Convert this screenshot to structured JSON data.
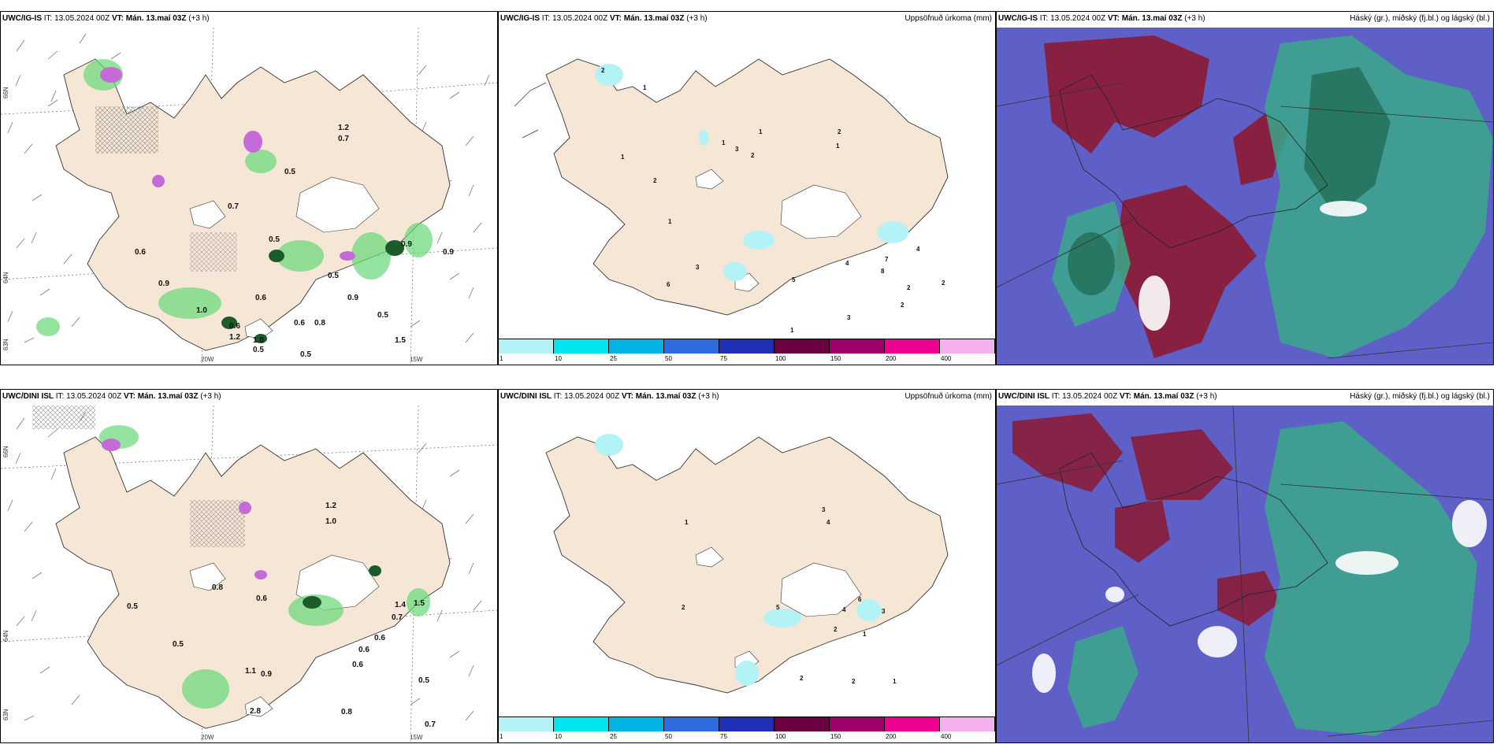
{
  "rows": [
    {
      "model": "UWC/IG-IS",
      "it_label": "IT:",
      "it_value": "13.05.2024 00Z",
      "vt_label": "VT:",
      "vt_value": "Mán. 13.maí 03Z",
      "lead": "(+3 h)",
      "precip_title": "Uppsöfnuð úrkoma (mm)",
      "cloud_title": "Háský (gr.), miðský (fj.bl.) og lágský (bl.)",
      "lat_labels": [
        "66N",
        "64N",
        "63N"
      ],
      "lon_labels": [
        "20W",
        "15W"
      ],
      "left_values": [
        "1.2",
        "0.7",
        "0.5",
        "0.7",
        "0.5",
        "0.6",
        "0.9",
        "0.9",
        "0.5",
        "0.9",
        "0.9",
        "1.5",
        "0.5",
        "0.6",
        "0.8",
        "1.0",
        "0.6",
        "1.2",
        "0.5",
        "0.6",
        "1.0",
        "0.5"
      ],
      "mid_values": [
        "2",
        "1",
        "3",
        "2",
        "1",
        "1",
        "2",
        "2",
        "1",
        "1",
        "1",
        "3",
        "6",
        "5",
        "4",
        "7",
        "8",
        "4",
        "2",
        "2",
        "3",
        "2",
        "1"
      ]
    },
    {
      "model": "UWC/DINI ISL",
      "it_label": "IT:",
      "it_value": "13.05.2024 00Z",
      "vt_label": "VT:",
      "vt_value": "Mán. 13.maí 03Z",
      "lead": "(+3 h)",
      "precip_title": "Uppsöfnuð úrkoma (mm)",
      "cloud_title": "Háský (gr.), miðský (fj.bl.) og lágský (bl.)",
      "lat_labels": [
        "66N",
        "64N",
        "63N"
      ],
      "lon_labels": [
        "20W",
        "15W"
      ],
      "left_values": [
        "1.2",
        "1.0",
        "0.8",
        "0.6",
        "0.5",
        "0.5",
        "1.4",
        "0.7",
        "1.5",
        "0.6",
        "0.6",
        "0.6",
        "0.5",
        "0.8",
        "0.7",
        "1.1",
        "0.9",
        "2.8"
      ],
      "mid_values": [
        "1",
        "3",
        "4",
        "2",
        "5",
        "4",
        "6",
        "3",
        "2",
        "1",
        "2",
        "2",
        "1"
      ]
    }
  ],
  "legend": {
    "labels": [
      "1",
      "10",
      "25",
      "50",
      "75",
      "100",
      "150",
      "200",
      "400"
    ],
    "colors": [
      "#b3f3f5",
      "#00e5ee",
      "#00b4e6",
      "#2f6be0",
      "#1e2fb8",
      "#6a0040",
      "#a0006a",
      "#ee0090",
      "#f5b0f0"
    ]
  },
  "colors": {
    "land": "#f5e6d6",
    "coast": "#333333",
    "ice": "#ffffff",
    "precip_green": "#66d978",
    "precip_dark": "#1c5b2a",
    "magenta": "#c56bd8",
    "cloud_base": "#5f5fc8",
    "cloud_high": "#8a1d3a",
    "cloud_mid": "#3aa88a",
    "cloud_low": "#ffffff"
  }
}
